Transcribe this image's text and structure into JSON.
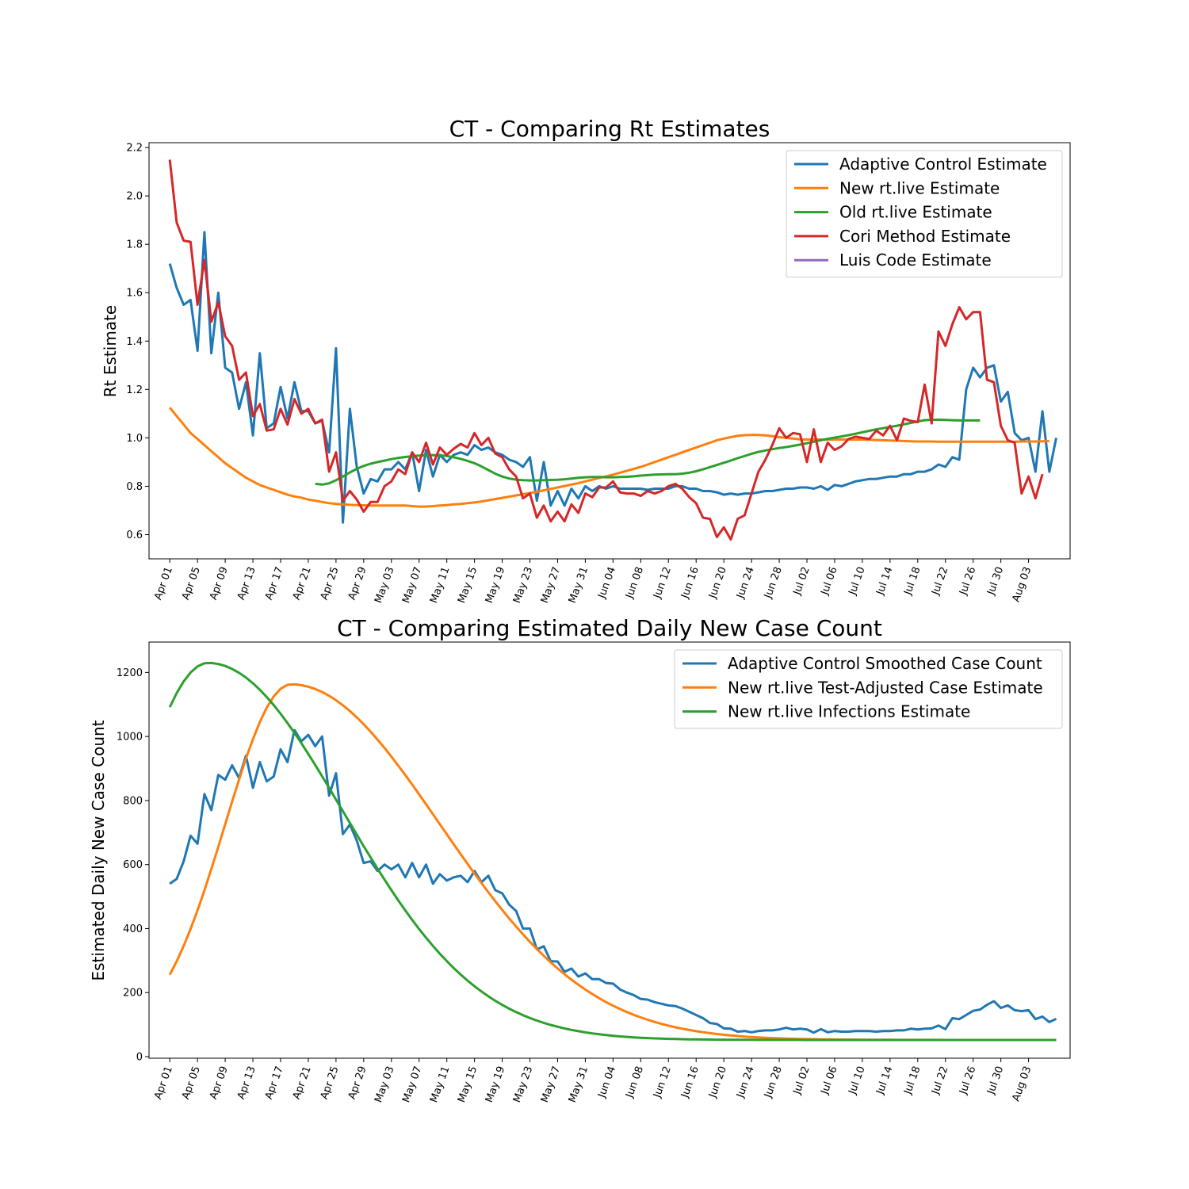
{
  "chart_data": [
    {
      "type": "line",
      "title": "CT - Comparing Rt Estimates",
      "ylabel": "Rt Estimate",
      "xlabel": "",
      "ylim": [
        0.5,
        2.22
      ],
      "x_start": "Apr 01",
      "x_range_days": [
        -3,
        130
      ],
      "xticks": [
        "Apr 01",
        "Apr 05",
        "Apr 09",
        "Apr 13",
        "Apr 17",
        "Apr 21",
        "Apr 25",
        "Apr 29",
        "May 03",
        "May 07",
        "May 11",
        "May 15",
        "May 19",
        "May 23",
        "May 27",
        "May 31",
        "Jun 04",
        "Jun 08",
        "Jun 12",
        "Jun 16",
        "Jun 20",
        "Jun 24",
        "Jun 28",
        "Jul 02",
        "Jul 06",
        "Jul 10",
        "Jul 14",
        "Jul 18",
        "Jul 22",
        "Jul 26",
        "Jul 30",
        "Aug 03"
      ],
      "yticks": [
        "0.6",
        "0.8",
        "1.0",
        "1.2",
        "1.4",
        "1.6",
        "1.8",
        "2.0",
        "2.2"
      ],
      "legend_position": "upper right",
      "series": [
        {
          "name": "Adaptive Control Estimate",
          "color": "#1f77b4",
          "start_day": 0,
          "values": [
            1.72,
            1.62,
            1.55,
            1.57,
            1.36,
            1.85,
            1.35,
            1.6,
            1.29,
            1.27,
            1.12,
            1.23,
            1.01,
            1.35,
            1.04,
            1.06,
            1.21,
            1.08,
            1.23,
            1.11,
            1.11,
            1.06,
            1.07,
            0.94,
            1.37,
            0.65,
            1.12,
            0.88,
            0.77,
            0.83,
            0.82,
            0.87,
            0.87,
            0.9,
            0.87,
            0.94,
            0.78,
            0.95,
            0.84,
            0.93,
            0.9,
            0.93,
            0.94,
            0.93,
            0.97,
            0.95,
            0.96,
            0.94,
            0.93,
            0.91,
            0.9,
            0.88,
            0.92,
            0.74,
            0.9,
            0.72,
            0.78,
            0.72,
            0.79,
            0.75,
            0.8,
            0.78,
            0.8,
            0.79,
            0.8,
            0.79,
            0.79,
            0.79,
            0.79,
            0.785,
            0.79,
            0.79,
            0.79,
            0.8,
            0.8,
            0.79,
            0.79,
            0.78,
            0.78,
            0.775,
            0.765,
            0.77,
            0.765,
            0.77,
            0.77,
            0.775,
            0.78,
            0.78,
            0.785,
            0.79,
            0.79,
            0.795,
            0.795,
            0.79,
            0.8,
            0.785,
            0.805,
            0.8,
            0.81,
            0.82,
            0.825,
            0.83,
            0.83,
            0.835,
            0.84,
            0.84,
            0.85,
            0.85,
            0.86,
            0.86,
            0.87,
            0.89,
            0.88,
            0.92,
            0.91,
            1.2,
            1.29,
            1.25,
            1.29,
            1.3,
            1.15,
            1.19,
            1.02,
            0.99,
            1.0,
            0.86,
            1.11,
            0.86,
            1.0
          ]
        },
        {
          "name": "New rt.live Estimate",
          "color": "#ff7f0e",
          "start_day": 0,
          "values": [
            1.125,
            1.09,
            1.055,
            1.02,
            0.995,
            0.97,
            0.945,
            0.92,
            0.895,
            0.875,
            0.855,
            0.835,
            0.82,
            0.805,
            0.795,
            0.785,
            0.775,
            0.765,
            0.758,
            0.753,
            0.745,
            0.74,
            0.735,
            0.73,
            0.727,
            0.725,
            0.723,
            0.722,
            0.721,
            0.72,
            0.72,
            0.72,
            0.72,
            0.72,
            0.72,
            0.718,
            0.716,
            0.716,
            0.718,
            0.72,
            0.722,
            0.725,
            0.727,
            0.73,
            0.733,
            0.737,
            0.742,
            0.747,
            0.752,
            0.757,
            0.762,
            0.767,
            0.772,
            0.777,
            0.783,
            0.789,
            0.795,
            0.801,
            0.807,
            0.813,
            0.82,
            0.827,
            0.834,
            0.841,
            0.848,
            0.856,
            0.864,
            0.872,
            0.88,
            0.89,
            0.9,
            0.91,
            0.92,
            0.93,
            0.94,
            0.95,
            0.96,
            0.97,
            0.98,
            0.99,
            0.997,
            1.003,
            1.008,
            1.011,
            1.012,
            1.012,
            1.01,
            1.007,
            1.003,
            1.0,
            0.997,
            0.994,
            0.993,
            0.993,
            0.993,
            0.993,
            0.993,
            0.993,
            0.993,
            0.993,
            0.993,
            0.992,
            0.991,
            0.99,
            0.989,
            0.988,
            0.987,
            0.986,
            0.985,
            0.985,
            0.985,
            0.984,
            0.984,
            0.984,
            0.984,
            0.984,
            0.984,
            0.984,
            0.984,
            0.984,
            0.984,
            0.984,
            0.984,
            0.985,
            0.985,
            0.985,
            0.986,
            0.987
          ]
        },
        {
          "name": "Old rt.live Estimate",
          "color": "#2ca02c",
          "start_day": 21,
          "values": [
            0.81,
            0.807,
            0.812,
            0.825,
            0.84,
            0.857,
            0.872,
            0.884,
            0.893,
            0.9,
            0.906,
            0.912,
            0.917,
            0.921,
            0.924,
            0.927,
            0.928,
            0.929,
            0.928,
            0.925,
            0.92,
            0.913,
            0.905,
            0.895,
            0.882,
            0.867,
            0.852,
            0.84,
            0.832,
            0.827,
            0.825,
            0.824,
            0.824,
            0.825,
            0.826,
            0.827,
            0.829,
            0.832,
            0.835,
            0.837,
            0.838,
            0.838,
            0.837,
            0.837,
            0.838,
            0.839,
            0.841,
            0.844,
            0.846,
            0.848,
            0.849,
            0.85,
            0.85,
            0.852,
            0.856,
            0.862,
            0.87,
            0.879,
            0.888,
            0.897,
            0.906,
            0.916,
            0.925,
            0.934,
            0.942,
            0.948,
            0.953,
            0.958,
            0.962,
            0.967,
            0.972,
            0.978,
            0.984,
            0.99,
            0.996,
            1.001,
            1.006,
            1.011,
            1.017,
            1.023,
            1.029,
            1.035,
            1.04,
            1.045,
            1.05,
            1.056,
            1.062,
            1.068,
            1.073,
            1.075,
            1.075,
            1.074,
            1.073,
            1.072,
            1.072,
            1.072,
            1.072
          ]
        },
        {
          "name": "Cori Method Estimate",
          "color": "#d62728",
          "start_day": 0,
          "values": [
            2.15,
            1.89,
            1.815,
            1.81,
            1.55,
            1.735,
            1.48,
            1.56,
            1.42,
            1.38,
            1.24,
            1.27,
            1.09,
            1.14,
            1.03,
            1.035,
            1.12,
            1.055,
            1.16,
            1.1,
            1.12,
            1.06,
            1.075,
            0.86,
            0.94,
            0.74,
            0.78,
            0.745,
            0.695,
            0.735,
            0.735,
            0.8,
            0.82,
            0.87,
            0.85,
            0.94,
            0.9,
            0.98,
            0.89,
            0.96,
            0.93,
            0.955,
            0.975,
            0.96,
            1.02,
            0.97,
            1.0,
            0.935,
            0.92,
            0.87,
            0.84,
            0.75,
            0.77,
            0.67,
            0.72,
            0.655,
            0.695,
            0.655,
            0.725,
            0.69,
            0.77,
            0.755,
            0.795,
            0.795,
            0.82,
            0.775,
            0.77,
            0.77,
            0.76,
            0.78,
            0.77,
            0.78,
            0.8,
            0.81,
            0.79,
            0.755,
            0.73,
            0.67,
            0.665,
            0.59,
            0.63,
            0.58,
            0.665,
            0.68,
            0.77,
            0.86,
            0.91,
            0.97,
            1.04,
            1.0,
            1.02,
            1.015,
            0.9,
            1.035,
            0.9,
            0.98,
            0.95,
            0.965,
            0.995,
            1.005,
            1.0,
            0.995,
            1.03,
            1.01,
            1.05,
            0.99,
            1.08,
            1.07,
            1.065,
            1.22,
            1.06,
            1.44,
            1.38,
            1.47,
            1.54,
            1.49,
            1.52,
            1.52,
            1.24,
            1.23,
            1.05,
            0.99,
            0.98,
            0.77,
            0.84,
            0.75,
            0.85
          ]
        },
        {
          "name": "Luis Code Estimate",
          "color": "#9467bd",
          "start_day": 0,
          "values": []
        }
      ]
    },
    {
      "type": "line",
      "title": "CT - Comparing Estimated Daily New Case Count",
      "ylabel": "Estimated Daily New Case Count",
      "xlabel": "",
      "ylim": [
        -5,
        1295
      ],
      "x_start": "Apr 01",
      "x_range_days": [
        -3,
        130
      ],
      "xticks": [
        "Apr 01",
        "Apr 05",
        "Apr 09",
        "Apr 13",
        "Apr 17",
        "Apr 21",
        "Apr 25",
        "Apr 29",
        "May 03",
        "May 07",
        "May 11",
        "May 15",
        "May 19",
        "May 23",
        "May 27",
        "May 31",
        "Jun 04",
        "Jun 08",
        "Jun 12",
        "Jun 16",
        "Jun 20",
        "Jun 24",
        "Jun 28",
        "Jul 02",
        "Jul 06",
        "Jul 10",
        "Jul 14",
        "Jul 18",
        "Jul 22",
        "Jul 26",
        "Jul 30",
        "Aug 03"
      ],
      "yticks": [
        "0",
        "200",
        "400",
        "600",
        "800",
        "1000",
        "1200"
      ],
      "legend_position": "upper right",
      "series": [
        {
          "name": "Adaptive Control Smoothed Case Count",
          "color": "#1f77b4",
          "start_day": 0,
          "values": [
            540,
            555,
            610,
            690,
            665,
            820,
            770,
            880,
            865,
            910,
            870,
            940,
            840,
            920,
            860,
            875,
            960,
            920,
            1020,
            985,
            1005,
            970,
            1000,
            815,
            885,
            695,
            725,
            675,
            605,
            610,
            580,
            600,
            585,
            600,
            560,
            605,
            560,
            600,
            540,
            570,
            550,
            560,
            565,
            545,
            580,
            545,
            565,
            520,
            510,
            475,
            455,
            400,
            400,
            335,
            345,
            298,
            297,
            265,
            275,
            250,
            260,
            242,
            242,
            230,
            228,
            210,
            200,
            192,
            180,
            178,
            170,
            165,
            160,
            158,
            150,
            140,
            130,
            120,
            105,
            102,
            88,
            87,
            78,
            80,
            76,
            80,
            82,
            82,
            85,
            90,
            85,
            87,
            85,
            75,
            86,
            76,
            80,
            78,
            78,
            80,
            80,
            80,
            78,
            80,
            80,
            82,
            82,
            87,
            85,
            87,
            88,
            97,
            86,
            120,
            117,
            130,
            143,
            147,
            162,
            173,
            152,
            160,
            145,
            142,
            145,
            117,
            125,
            108,
            118
          ]
        },
        {
          "name": "New rt.live Test-Adjusted Case Estimate",
          "color": "#ff7f0e",
          "start_day": 0,
          "fit": {
            "base": 52,
            "peak": 1163,
            "peak_day": 17.5,
            "sigma_left": 9.5,
            "sigma_right": 21.5
          }
        },
        {
          "name": "New rt.live Infections Estimate",
          "color": "#2ca02c",
          "start_day": 0,
          "fit": {
            "base": 52,
            "peak": 1230,
            "peak_day": 5.5,
            "sigma_left": 11,
            "sigma_right": 19.5
          }
        }
      ]
    }
  ]
}
